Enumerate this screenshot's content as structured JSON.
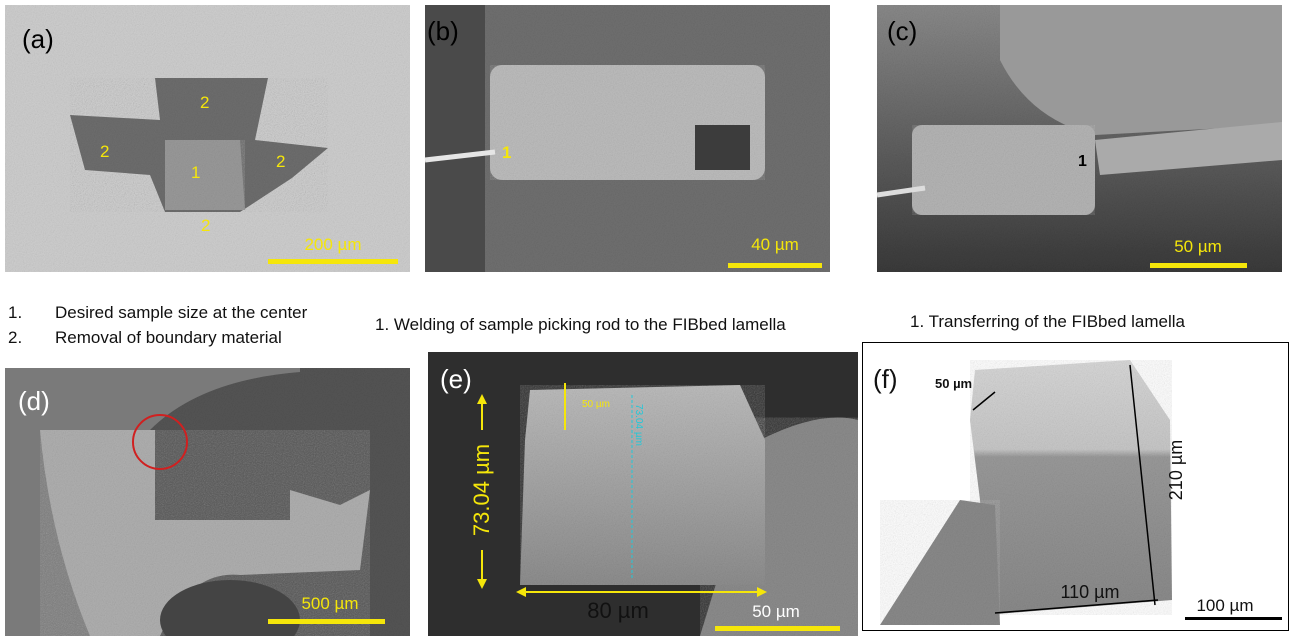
{
  "panels": [
    {
      "label": "(a)",
      "annotations": [
        "2",
        "2",
        "2",
        "1",
        "2"
      ],
      "scale_bar": "200 µm"
    },
    {
      "label": "(b)",
      "annotations": [
        "1"
      ],
      "scale_bar": "40 µm"
    },
    {
      "label": "(c)",
      "annotations": [
        "1"
      ],
      "scale_bar": "50 µm"
    },
    {
      "label": "(d)",
      "scale_bar": "500 µm"
    },
    {
      "label": "(e)",
      "annotations": [
        "50 µm",
        "73.04 µm",
        "73.04 µm",
        "80 µm"
      ],
      "scale_bar": "50 µm"
    },
    {
      "label": "(f)",
      "annotations": [
        "50 µm",
        "210 µm",
        "110 µm"
      ],
      "scale_bar": "100 µm"
    }
  ],
  "captions": [
    {
      "items": [
        {
          "number": "1.",
          "text": "Desired sample size at the center"
        },
        {
          "number": "2.",
          "text": "Removal of boundary material"
        }
      ]
    },
    {
      "text": "1. Welding of sample picking rod to the FIBbed lamella"
    },
    {
      "text": "1. Transferring of the FIBbed lamella"
    }
  ]
}
